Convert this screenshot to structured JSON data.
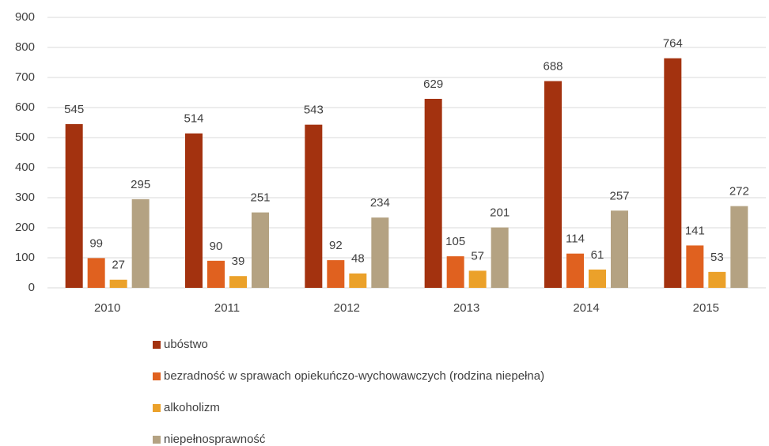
{
  "chart_data": {
    "type": "bar",
    "categories": [
      "2010",
      "2011",
      "2012",
      "2013",
      "2014",
      "2015"
    ],
    "series": [
      {
        "name": "ubóstwo",
        "color": "#a3320f",
        "values": [
          545,
          514,
          543,
          629,
          688,
          764
        ]
      },
      {
        "name": "bezradność w sprawach opiekuńczo-wychowawczych (rodzina niepełna)",
        "color": "#e0611f",
        "values": [
          99,
          90,
          92,
          105,
          114,
          141
        ]
      },
      {
        "name": "alkoholizm",
        "color": "#eba12a",
        "values": [
          27,
          39,
          48,
          57,
          61,
          53
        ]
      },
      {
        "name": "niepełnosprawność",
        "color": "#b4a282",
        "values": [
          295,
          251,
          234,
          201,
          257,
          272
        ]
      }
    ],
    "ylim": [
      0,
      900
    ],
    "yticks": [
      0,
      100,
      200,
      300,
      400,
      500,
      600,
      700,
      800,
      900
    ],
    "grid": true,
    "legend": "bottom"
  }
}
